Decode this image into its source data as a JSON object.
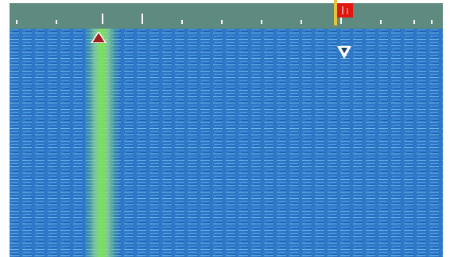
{
  "ruler": {
    "tick_icon": "tick-mark",
    "tick_color": "#ffffff",
    "background_color": "#5f8a80"
  },
  "waterfall": {
    "background_color": "#2f78c8",
    "signal_color": "#7be84a",
    "signal_glow_color": "#b6f29f"
  },
  "markers": {
    "flag_icon": "red-flag-icon",
    "flag_color": "#e0170f",
    "left_marker_icon": "triangle-up-icon",
    "left_marker_color": "#a02020",
    "right_marker_icon": "triangle-down-icon",
    "right_marker_color": "#ffffff"
  }
}
